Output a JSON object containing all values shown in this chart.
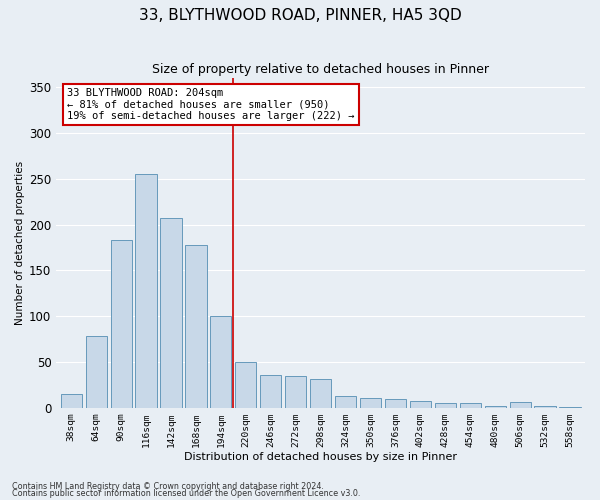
{
  "title": "33, BLYTHWOOD ROAD, PINNER, HA5 3QD",
  "subtitle": "Size of property relative to detached houses in Pinner",
  "xlabel": "Distribution of detached houses by size in Pinner",
  "ylabel": "Number of detached properties",
  "footnote1": "Contains HM Land Registry data © Crown copyright and database right 2024.",
  "footnote2": "Contains public sector information licensed under the Open Government Licence v3.0.",
  "bar_labels": [
    "38sqm",
    "64sqm",
    "90sqm",
    "116sqm",
    "142sqm",
    "168sqm",
    "194sqm",
    "220sqm",
    "246sqm",
    "272sqm",
    "298sqm",
    "324sqm",
    "350sqm",
    "376sqm",
    "402sqm",
    "428sqm",
    "454sqm",
    "480sqm",
    "506sqm",
    "532sqm",
    "558sqm"
  ],
  "bar_heights": [
    15,
    78,
    183,
    255,
    207,
    178,
    100,
    50,
    36,
    35,
    31,
    13,
    10,
    9,
    7,
    5,
    5,
    2,
    6,
    2,
    1
  ],
  "bar_color": "#c8d8e8",
  "bar_edge_color": "#6699bb",
  "vline_x_index": 6.5,
  "vline_color": "#cc0000",
  "annotation_text": "33 BLYTHWOOD ROAD: 204sqm\n← 81% of detached houses are smaller (950)\n19% of semi-detached houses are larger (222) →",
  "annotation_box_color": "#ffffff",
  "annotation_box_edge_color": "#cc0000",
  "bg_color": "#e8eef4",
  "plot_bg_color": "#e8eef4",
  "ylim": [
    0,
    360
  ],
  "yticks": [
    0,
    50,
    100,
    150,
    200,
    250,
    300,
    350
  ],
  "grid_color": "#ffffff",
  "title_fontsize": 11,
  "subtitle_fontsize": 9
}
